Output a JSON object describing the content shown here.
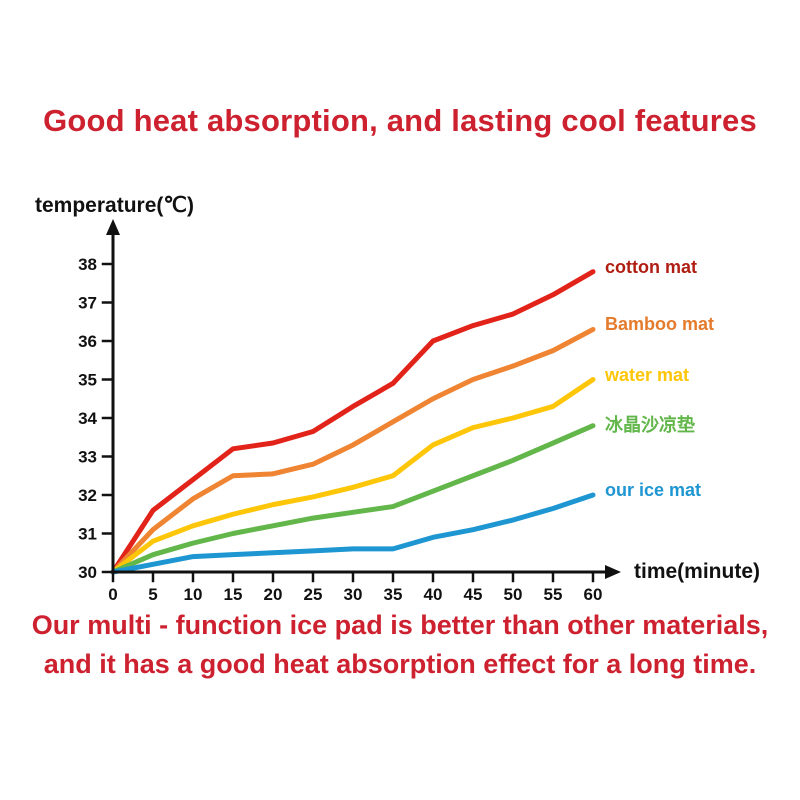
{
  "page": {
    "title": "Good heat absorption, and lasting cool features",
    "footer_line1": "Our multi - function ice pad is better than other materials,",
    "footer_line2": "and it has a good heat absorption effect for a long time."
  },
  "colors": {
    "heading_red": "#cd2130",
    "axis_black": "#111111"
  },
  "chart_data": {
    "type": "line",
    "title": "",
    "xlabel": "time(minute)",
    "ylabel": "temperature(℃)",
    "x": [
      0,
      5,
      10,
      15,
      20,
      25,
      30,
      35,
      40,
      45,
      50,
      55,
      60
    ],
    "x_ticks": [
      0,
      5,
      10,
      15,
      20,
      25,
      30,
      35,
      40,
      45,
      50,
      55,
      60
    ],
    "y_ticks": [
      30,
      31,
      32,
      33,
      34,
      35,
      36,
      37,
      38
    ],
    "xlim": [
      0,
      60
    ],
    "ylim": [
      30,
      38
    ],
    "grid": false,
    "legend_position": "right-of-line-ends",
    "series": [
      {
        "name": "cotton mat",
        "color": "#e2231a",
        "label_color": "#b01e13",
        "values": [
          30,
          31.6,
          32.4,
          33.2,
          33.35,
          33.65,
          34.3,
          34.9,
          36.0,
          36.4,
          36.7,
          37.2,
          37.8
        ]
      },
      {
        "name": "Bamboo mat",
        "color": "#ef8432",
        "label_color": "#e57b2c",
        "values": [
          30,
          31.1,
          31.9,
          32.5,
          32.55,
          32.8,
          33.3,
          33.9,
          34.5,
          35.0,
          35.35,
          35.75,
          36.3
        ]
      },
      {
        "name": "water mat",
        "color": "#fdc608",
        "label_color": "#fdc608",
        "values": [
          30,
          30.8,
          31.2,
          31.5,
          31.75,
          31.95,
          32.2,
          32.5,
          33.3,
          33.75,
          34.0,
          34.3,
          35.0
        ]
      },
      {
        "name": "冰晶沙凉垫",
        "color": "#62b64a",
        "label_color": "#62b64a",
        "values": [
          30,
          30.45,
          30.75,
          31.0,
          31.2,
          31.4,
          31.55,
          31.7,
          32.1,
          32.5,
          32.9,
          33.35,
          33.8
        ]
      },
      {
        "name": "our ice mat",
        "color": "#1e96d2",
        "label_color": "#1e96d2",
        "values": [
          30,
          30.2,
          30.4,
          30.45,
          30.5,
          30.55,
          30.6,
          30.6,
          30.9,
          31.1,
          31.35,
          31.65,
          32.0
        ]
      }
    ]
  }
}
